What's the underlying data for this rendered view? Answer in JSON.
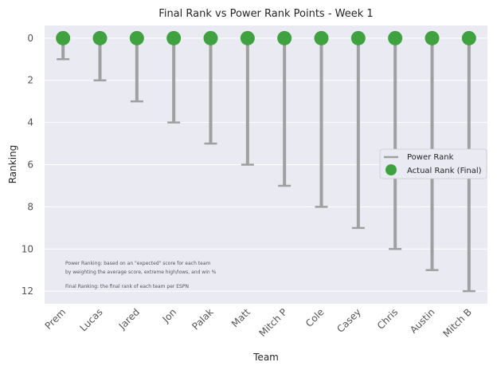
{
  "chart_data": {
    "type": "scatter",
    "title": "Final Rank vs Power Rank Points - Week 1",
    "xlabel": "Team",
    "ylabel": "Ranking",
    "categories": [
      "Prem",
      "Lucas",
      "Jared",
      "Jon",
      "Palak",
      "Matt",
      "Mitch P",
      "Cole",
      "Casey",
      "Chris",
      "Austin",
      "Mitch B"
    ],
    "series": [
      {
        "name": "Power Rank",
        "values": [
          1,
          2,
          3,
          4,
          5,
          6,
          7,
          8,
          9,
          10,
          11,
          12
        ]
      },
      {
        "name": "Actual Rank (Final)",
        "values": [
          0,
          0,
          0,
          0,
          0,
          0,
          0,
          0,
          0,
          0,
          0,
          0
        ]
      }
    ],
    "ylim": [
      12.6,
      -0.6
    ],
    "yticks": [
      "0",
      "2",
      "4",
      "6",
      "8",
      "10",
      "12"
    ],
    "ytick_values": [
      0,
      2,
      4,
      6,
      8,
      10,
      12
    ],
    "grid": true,
    "legend_position": "center-right",
    "colors": {
      "power": "#a0a0a0",
      "actual": "#3ea33e",
      "background": "#eaeaf2",
      "grid": "#ffffff"
    },
    "annotations": [
      "Power Ranking: based on an \"expected\" score for each team",
      "by weighting the average score, extreme high/lows, and win %",
      "Final Ranking: the final rank of each team per ESPN"
    ]
  }
}
